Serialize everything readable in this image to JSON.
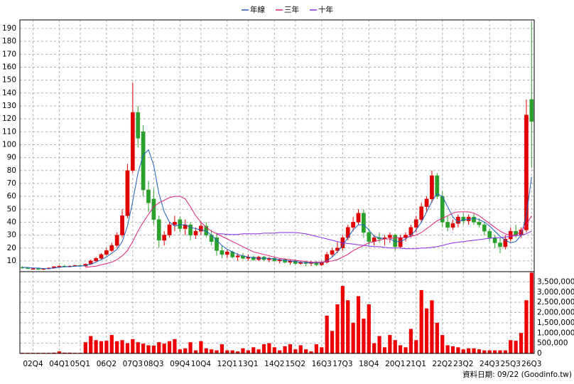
{
  "chart_data": {
    "type": "candlestick",
    "categories": [
      null,
      null,
      "02Q4",
      null,
      null,
      null,
      null,
      "04Q1",
      null,
      null,
      null,
      "05Q1",
      null,
      null,
      null,
      null,
      "06Q2",
      null,
      null,
      null,
      null,
      "07Q3",
      null,
      null,
      null,
      "08Q3",
      null,
      null,
      null,
      null,
      "09Q4",
      null,
      null,
      null,
      "10Q4",
      null,
      null,
      null,
      null,
      "12Q1",
      null,
      null,
      null,
      "13Q1",
      null,
      null,
      null,
      null,
      "14Q2",
      null,
      null,
      null,
      "15Q2",
      null,
      null,
      null,
      null,
      "16Q3",
      null,
      null,
      null,
      "17Q3",
      null,
      null,
      null,
      null,
      "18Q4",
      null,
      null,
      null,
      null,
      "20Q1",
      null,
      null,
      null,
      "21Q1",
      null,
      null,
      null,
      null,
      "22Q2",
      null,
      null,
      null,
      "23Q2",
      null,
      null,
      null,
      null,
      "24Q3",
      null,
      null,
      null,
      "25Q3",
      null,
      null,
      null,
      "26Q3"
    ],
    "open": [
      5,
      4.5,
      4,
      4,
      3.5,
      4,
      4.5,
      5.5,
      6,
      5.5,
      6,
      6.5,
      6,
      7.5,
      10,
      12,
      15,
      18,
      22,
      30,
      45,
      80,
      125,
      110,
      65,
      58,
      42,
      26,
      30,
      38,
      42,
      35,
      38,
      30,
      33,
      37,
      30,
      28,
      18,
      15,
      17,
      13,
      14,
      12,
      13,
      11,
      13,
      11,
      12,
      10,
      11,
      9,
      10,
      8,
      9,
      8,
      9,
      7,
      9,
      15,
      18,
      20,
      28,
      36,
      40,
      47,
      32,
      25,
      28,
      27,
      28,
      30,
      21,
      28,
      30,
      36,
      42,
      52,
      58,
      76,
      60,
      40,
      36,
      39,
      44,
      41,
      44,
      40,
      38,
      33,
      28,
      24,
      21,
      27,
      33,
      30,
      34,
      135
    ],
    "high": [
      6,
      5,
      4.5,
      4.5,
      4.5,
      5,
      6,
      6.5,
      7,
      6.5,
      7,
      7,
      8,
      11,
      13,
      16,
      20,
      24,
      32,
      50,
      85,
      148,
      130,
      115,
      72,
      66,
      45,
      33,
      40,
      45,
      44,
      42,
      40,
      36,
      40,
      40,
      34,
      32,
      22,
      19,
      18,
      16,
      16,
      15,
      14,
      14,
      14,
      13,
      13,
      12,
      12,
      11,
      11,
      10,
      10,
      10,
      10,
      10,
      17,
      20,
      25,
      30,
      38,
      44,
      50,
      50,
      35,
      30,
      32,
      30,
      32,
      31,
      30,
      32,
      38,
      45,
      55,
      60,
      80,
      78,
      64,
      45,
      42,
      46,
      47,
      46,
      47,
      43,
      40,
      35,
      30,
      28,
      30,
      36,
      38,
      36,
      135,
      195
    ],
    "low": [
      4,
      4,
      3.5,
      3,
      3,
      3.5,
      4,
      5,
      5,
      5,
      5.5,
      5.5,
      5.5,
      7,
      9,
      11,
      14,
      17,
      20,
      28,
      43,
      78,
      98,
      60,
      48,
      38,
      20,
      22,
      28,
      33,
      32,
      30,
      26,
      27,
      30,
      28,
      22,
      14,
      12,
      12,
      12,
      10,
      11,
      10,
      10,
      10,
      10,
      9,
      9,
      8,
      8,
      7,
      7,
      7,
      6,
      6,
      6,
      6,
      8,
      13,
      16,
      18,
      26,
      33,
      38,
      28,
      22,
      22,
      24,
      22,
      24,
      18,
      20,
      25,
      28,
      32,
      40,
      48,
      55,
      58,
      36,
      33,
      34,
      36,
      38,
      38,
      38,
      36,
      30,
      25,
      20,
      16,
      19,
      25,
      28,
      28,
      32,
      82
    ],
    "close": [
      4.5,
      4,
      4,
      3.5,
      4,
      4.5,
      5.5,
      6,
      5.5,
      6,
      6.5,
      6,
      7.5,
      10,
      12,
      15,
      18,
      22,
      30,
      45,
      80,
      125,
      105,
      65,
      55,
      42,
      26,
      30,
      38,
      40,
      35,
      38,
      30,
      33,
      37,
      30,
      25,
      18,
      15,
      17,
      13,
      14,
      12,
      13,
      11,
      13,
      11,
      12,
      10,
      11,
      9,
      10,
      8,
      9,
      8,
      9,
      7,
      9,
      15,
      18,
      20,
      28,
      36,
      40,
      47,
      32,
      25,
      28,
      27,
      28,
      30,
      21,
      28,
      30,
      36,
      42,
      52,
      58,
      76,
      60,
      40,
      36,
      39,
      44,
      41,
      44,
      40,
      38,
      33,
      28,
      24,
      21,
      27,
      33,
      30,
      34,
      123,
      118
    ],
    "up_color": "#e00000",
    "down_color": "#2ca02c",
    "series": [
      {
        "name": "年線",
        "color": "#1f5fc0",
        "values": [
          5,
          5,
          4.5,
          4.5,
          4,
          4,
          4.5,
          5,
          5.5,
          5.5,
          6,
          6,
          6.5,
          7.5,
          9,
          11,
          13,
          16,
          19,
          25,
          37,
          56,
          78,
          92,
          96,
          84,
          62,
          48,
          40,
          37,
          38,
          38,
          36,
          35,
          34,
          33,
          30,
          26,
          22,
          19,
          17,
          15,
          14,
          13,
          12.5,
          12,
          12,
          12,
          11.5,
          11,
          10.5,
          10,
          9.5,
          9,
          8.5,
          8.5,
          8.5,
          8.5,
          10,
          13,
          17,
          22,
          28,
          34,
          38,
          38,
          34,
          29,
          28,
          27,
          27,
          25,
          25,
          27,
          30,
          34,
          40,
          48,
          56,
          62,
          60,
          52,
          44,
          40,
          42,
          42,
          43,
          42,
          40,
          37,
          33,
          29,
          26,
          24,
          25,
          30,
          45,
          75
        ]
      },
      {
        "name": "三年",
        "color": "#e0207a",
        "values": [
          null,
          null,
          null,
          null,
          null,
          null,
          null,
          null,
          null,
          null,
          null,
          null,
          5,
          5.5,
          6,
          7,
          8,
          9,
          11,
          14,
          18,
          25,
          33,
          40,
          46,
          52,
          55,
          57,
          59,
          60,
          60,
          58,
          52,
          45,
          40,
          36,
          33,
          31,
          29,
          27,
          25,
          23,
          21,
          19,
          17,
          16,
          15,
          14,
          13,
          12,
          11.5,
          11,
          10.5,
          10,
          9.5,
          9,
          9,
          9,
          9.5,
          10,
          11,
          13,
          15,
          18,
          20,
          22,
          24,
          25,
          26,
          27,
          27,
          28,
          28,
          28,
          29,
          30,
          32,
          35,
          38,
          41,
          43,
          45,
          47,
          48,
          48,
          48,
          47,
          45,
          42,
          39,
          36,
          33,
          31,
          30,
          30,
          33,
          38,
          45
        ]
      },
      {
        "name": "十年",
        "color": "#8a2be2",
        "values": [
          null,
          null,
          null,
          null,
          null,
          null,
          null,
          null,
          null,
          null,
          null,
          null,
          null,
          null,
          null,
          null,
          null,
          null,
          null,
          null,
          null,
          null,
          null,
          null,
          null,
          null,
          null,
          null,
          null,
          null,
          null,
          null,
          null,
          null,
          null,
          null,
          null,
          31,
          31,
          30.5,
          30.5,
          30.5,
          31,
          31,
          31,
          31,
          31.5,
          31.5,
          31.5,
          32,
          32,
          32,
          32,
          31.5,
          31,
          30,
          29,
          28,
          27,
          26,
          25,
          24,
          23.5,
          23,
          22.5,
          22,
          21.5,
          21,
          21,
          20.5,
          20,
          20,
          20,
          19.5,
          19.5,
          19.5,
          20,
          20,
          20.5,
          21,
          22,
          23,
          24,
          24.5,
          25,
          25.5,
          26,
          26.5,
          27,
          27.5,
          28,
          28,
          28.5,
          29,
          29.5,
          30,
          31,
          33
        ]
      }
    ],
    "legend_position": "top",
    "ylim": [
      1.7,
      196.6
    ],
    "yticks": [
      10,
      20,
      30,
      40,
      50,
      60,
      70,
      80,
      90,
      100,
      110,
      120,
      130,
      140,
      150,
      160,
      170,
      180,
      190
    ],
    "grid": true,
    "volume": {
      "color": "#ee0000",
      "values": [
        30000,
        30000,
        30000,
        30000,
        30000,
        30000,
        40000,
        100000,
        40000,
        40000,
        30000,
        30000,
        550000,
        850000,
        650000,
        600000,
        620000,
        900000,
        600000,
        650000,
        500000,
        700000,
        550000,
        480000,
        400000,
        380000,
        550000,
        480000,
        600000,
        700000,
        200000,
        250000,
        550000,
        150000,
        600000,
        250000,
        200000,
        150000,
        450000,
        150000,
        150000,
        100000,
        250000,
        150000,
        300000,
        200000,
        450000,
        500000,
        300000,
        150000,
        350000,
        450000,
        200000,
        400000,
        200000,
        100000,
        450000,
        300000,
        1850000,
        1100000,
        2400000,
        3300000,
        2600000,
        1500000,
        2800000,
        1700000,
        2400000,
        500000,
        850000,
        300000,
        900000,
        650000,
        400000,
        300000,
        1200000,
        650000,
        3100000,
        2200000,
        2600000,
        1500000,
        900000,
        400000,
        350000,
        300000,
        200000,
        250000,
        250000,
        200000,
        150000,
        150000,
        150000,
        150000,
        150000,
        650000,
        620000,
        1000000,
        2600000,
        3950000
      ],
      "ylim": [
        0,
        4000000
      ],
      "yticks": [
        0,
        {
          "value": 500000,
          "label": "500,000"
        },
        {
          "value": 1000000,
          "label": "1,000,000"
        },
        {
          "value": 1500000,
          "label": "1,500,000"
        },
        {
          "value": 2000000,
          "label": "2,000,000"
        },
        {
          "value": 2500000,
          "label": "2,500,000"
        },
        {
          "value": 3000000,
          "label": "3,000,000"
        },
        {
          "value": 3500000,
          "label": "3,500,000"
        }
      ]
    },
    "annotation": "資料日期: 09/22 (Goodinfo.tw)"
  }
}
